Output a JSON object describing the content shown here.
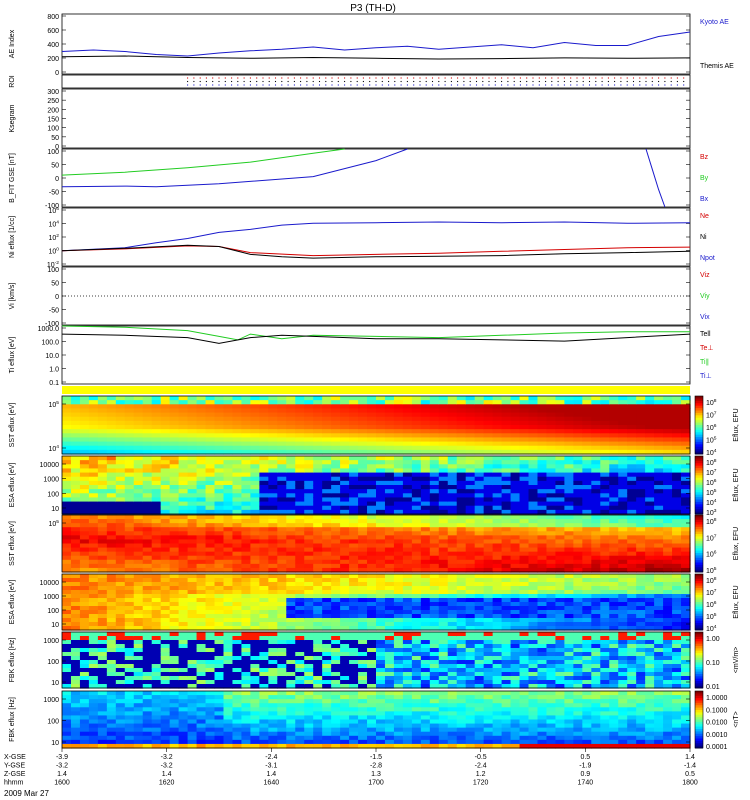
{
  "title": "P3 (TH-D)",
  "date_label": "2009 Mar 27",
  "colors": {
    "red": "#d40000",
    "green": "#22cc22",
    "blue": "#1a1acc",
    "black": "#000000"
  },
  "chart_data": {
    "type": "multi-panel time-series / spectrogram",
    "x_axis": {
      "ticks": [
        "1600",
        "1620",
        "1640",
        "1700",
        "1720",
        "1740",
        "1800"
      ],
      "rows": [
        {
          "name": "X-GSE",
          "values": [
            "-3.9",
            "-3.2",
            "-2.4",
            "-1.5",
            "-0.5",
            "0.5",
            "1.4"
          ]
        },
        {
          "name": "Y-GSE",
          "values": [
            "-3.2",
            "-3.2",
            "-3.1",
            "-2.8",
            "-2.4",
            "-1.9",
            "-1.4"
          ]
        },
        {
          "name": "Z-GSE",
          "values": [
            "1.4",
            "1.4",
            "1.4",
            "1.3",
            "1.2",
            "0.9",
            "0.5"
          ]
        },
        {
          "name": "hhmm",
          "values": [
            "1600",
            "1620",
            "1640",
            "1700",
            "1720",
            "1740",
            "1800"
          ]
        }
      ]
    },
    "panels": [
      {
        "id": "ae",
        "type": "line",
        "ylabel": "AE Index",
        "yticks": [
          "800",
          "600",
          "400",
          "200",
          "0"
        ],
        "ylim": [
          0,
          800
        ],
        "legend": [
          {
            "name": "Kyoto AE",
            "color": "#1a1acc"
          },
          {
            "name": "Themis AE",
            "color": "#000000"
          }
        ],
        "series": [
          {
            "name": "Kyoto AE",
            "color": "#1a1acc",
            "x": [
              0,
              0.05,
              0.1,
              0.15,
              0.2,
              0.25,
              0.3,
              0.35,
              0.4,
              0.45,
              0.5,
              0.55,
              0.6,
              0.65,
              0.7,
              0.75,
              0.8,
              0.85,
              0.9,
              0.95,
              1
            ],
            "y": [
              300,
              320,
              300,
              260,
              240,
              280,
              310,
              330,
              360,
              320,
              350,
              370,
              330,
              360,
              390,
              350,
              420,
              380,
              380,
              500,
              560
            ]
          },
          {
            "name": "Themis AE",
            "color": "#000000",
            "x": [
              0,
              0.1,
              0.2,
              0.3,
              0.4,
              0.5,
              0.6,
              0.7,
              0.8,
              0.9,
              1
            ],
            "y": [
              230,
              240,
              220,
              210,
              220,
              210,
              200,
              205,
              215,
              210,
              215
            ]
          }
        ]
      },
      {
        "id": "roi",
        "type": "dots",
        "ylabel": "ROI",
        "start": 0.2
      },
      {
        "id": "kp",
        "type": "empty",
        "ylabel": "Ksegram",
        "yticks": [
          "300",
          "250",
          "200",
          "150",
          "100",
          "50",
          "0"
        ]
      },
      {
        "id": "bfit",
        "type": "line",
        "ylabel": "B_FIT GSE [nT]",
        "yticks": [
          "100",
          "50",
          "0",
          "-50",
          "-100"
        ],
        "ylim": [
          -100,
          100
        ],
        "legend": [
          {
            "name": "Bz",
            "color": "#d40000"
          },
          {
            "name": "By",
            "color": "#22cc22"
          },
          {
            "name": "Bx",
            "color": "#1a1acc"
          }
        ],
        "series": [
          {
            "name": "By",
            "color": "#22cc22",
            "x": [
              0,
              0.1,
              0.2,
              0.3,
              0.4,
              0.45
            ],
            "y": [
              10,
              20,
              35,
              55,
              85,
              100
            ]
          },
          {
            "name": "Bx",
            "color": "#1a1acc",
            "x": [
              0,
              0.1,
              0.15,
              0.25,
              0.4,
              0.5,
              0.55
            ],
            "y": [
              -30,
              -28,
              -30,
              -20,
              5,
              60,
              100
            ]
          },
          {
            "name": "Bx",
            "color": "#1a1acc",
            "x": [
              0.93,
              0.94,
              0.95,
              0.96
            ],
            "y": [
              100,
              30,
              -40,
              -100
            ]
          }
        ]
      },
      {
        "id": "ni",
        "type": "line",
        "ylabel": "Ni eflux [1/cc]",
        "yticks": [
          "10^6",
          "10^4",
          "10^2",
          "10^0",
          "10^-2"
        ],
        "ylim": [
          -2.5,
          7
        ],
        "log": true,
        "legend": [
          {
            "name": "Ne",
            "color": "#d40000"
          },
          {
            "name": "Ni",
            "color": "#000000"
          },
          {
            "name": "Npot",
            "color": "#1a1acc"
          }
        ],
        "series": [
          {
            "name": "Npot",
            "color": "#1a1acc",
            "x": [
              0,
              0.1,
              0.15,
              0.2,
              0.25,
              0.3,
              0.35,
              0.4,
              0.5,
              0.6,
              0.7,
              0.8,
              0.9,
              1
            ],
            "y": [
              0,
              0.5,
              1.3,
              2.0,
              3.0,
              3.5,
              4.2,
              4.5,
              4.6,
              4.7,
              4.6,
              4.7,
              4.5,
              4.6
            ]
          },
          {
            "name": "Ne",
            "color": "#d40000",
            "x": [
              0,
              0.1,
              0.2,
              0.25,
              0.3,
              0.4,
              0.5,
              0.6,
              0.7,
              0.8,
              0.9,
              1
            ],
            "y": [
              0,
              0.3,
              0.8,
              0.7,
              -0.3,
              -0.8,
              -0.6,
              -0.4,
              -0.1,
              0.2,
              0.5,
              0.6
            ]
          },
          {
            "name": "Ni",
            "color": "#000000",
            "x": [
              0,
              0.1,
              0.2,
              0.25,
              0.3,
              0.35,
              0.4,
              0.5,
              0.6,
              0.7,
              0.8,
              0.9,
              1
            ],
            "y": [
              0,
              0.4,
              0.9,
              0.7,
              -0.6,
              -1.0,
              -1.2,
              -1.0,
              -0.9,
              -0.8,
              -0.5,
              -0.3,
              -0.1
            ]
          }
        ]
      },
      {
        "id": "vi",
        "type": "empty",
        "ylabel": "Vi [km/s]",
        "yticks": [
          "100",
          "50",
          "0",
          "-50",
          "-100"
        ],
        "zero_dotted": true,
        "legend": [
          {
            "name": "Viz",
            "color": "#d40000"
          },
          {
            "name": "Viy",
            "color": "#22cc22"
          },
          {
            "name": "Vix",
            "color": "#1a1acc"
          }
        ]
      },
      {
        "id": "ti",
        "type": "line",
        "ylabel": "Ti eflux [eV]",
        "yticks": [
          "1000.0",
          "100.0",
          "10.0",
          "1.0",
          "0.1"
        ],
        "ylim": [
          -1.5,
          3.5
        ],
        "log": true,
        "legend": [
          {
            "name": "Tell",
            "color": "#000000"
          },
          {
            "name": "Te⊥",
            "color": "#d40000"
          },
          {
            "name": "Ti∥",
            "color": "#22cc22"
          },
          {
            "name": "Ti⊥",
            "color": "#1a1acc"
          }
        ],
        "series": [
          {
            "name": "Ti∥",
            "color": "#22cc22",
            "x": [
              0,
              0.1,
              0.2,
              0.25,
              0.28,
              0.3,
              0.35,
              0.4,
              0.5,
              0.6,
              0.7,
              0.8,
              0.9,
              1
            ],
            "y": [
              3.5,
              3.4,
              3.1,
              2.6,
              2.3,
              2.8,
              2.4,
              2.7,
              2.6,
              2.5,
              2.7,
              2.9,
              3.0,
              3.0
            ]
          },
          {
            "name": "Tell",
            "color": "#000000",
            "x": [
              0,
              0.1,
              0.2,
              0.25,
              0.3,
              0.35,
              0.4,
              0.5,
              0.6,
              0.7,
              0.8,
              0.9,
              1
            ],
            "y": [
              2.8,
              2.7,
              2.5,
              2.0,
              2.5,
              2.7,
              2.6,
              2.4,
              2.4,
              2.3,
              2.2,
              2.5,
              2.8
            ]
          }
        ]
      },
      {
        "id": "spec1",
        "type": "heatmap",
        "ylabel": "SST eflux [eV]",
        "yticks": [
          "10^5",
          "10^4"
        ],
        "cbar_label": "Eflux, EFU",
        "cbar_ticks": [
          "10^8",
          "10^7",
          "10^6",
          "10^5",
          "10^4"
        ]
      },
      {
        "id": "spec2",
        "type": "heatmap",
        "ylabel": "ESA eflux [eV]",
        "yticks": [
          "10000",
          "1000",
          "100",
          "10"
        ],
        "cbar_label": "Eflux, EFU",
        "cbar_ticks": [
          "10^8",
          "10^7",
          "10^6",
          "10^5",
          "10^4",
          "10^3"
        ]
      },
      {
        "id": "spec3",
        "type": "heatmap",
        "ylabel": "SST eflux [eV]",
        "yticks": [
          "10^5"
        ],
        "cbar_label": "Eflux, EFU",
        "cbar_ticks": [
          "10^8",
          "10^7",
          "10^6",
          "10^5"
        ]
      },
      {
        "id": "spec4",
        "type": "heatmap",
        "ylabel": "ESA eflux [eV]",
        "yticks": [
          "10000",
          "1000",
          "100",
          "10"
        ],
        "cbar_label": "Eflux, EFU",
        "cbar_ticks": [
          "10^8",
          "10^7",
          "10^6",
          "10^5",
          "10^4"
        ]
      },
      {
        "id": "spec5",
        "type": "heatmap",
        "ylabel": "FBK eflux [Hz]",
        "yticks": [
          "1000",
          "100",
          "10"
        ],
        "cbar_label": "<mV/m>",
        "cbar_ticks": [
          "1.00",
          "0.10",
          "0.01"
        ]
      },
      {
        "id": "spec6",
        "type": "heatmap",
        "ylabel": "FBK eflux [Hz]",
        "yticks": [
          "1000",
          "100",
          "10"
        ],
        "cbar_label": "<nT>",
        "cbar_ticks": [
          "1.0000",
          "0.1000",
          "0.0100",
          "0.0010",
          "0.0001"
        ]
      }
    ]
  }
}
